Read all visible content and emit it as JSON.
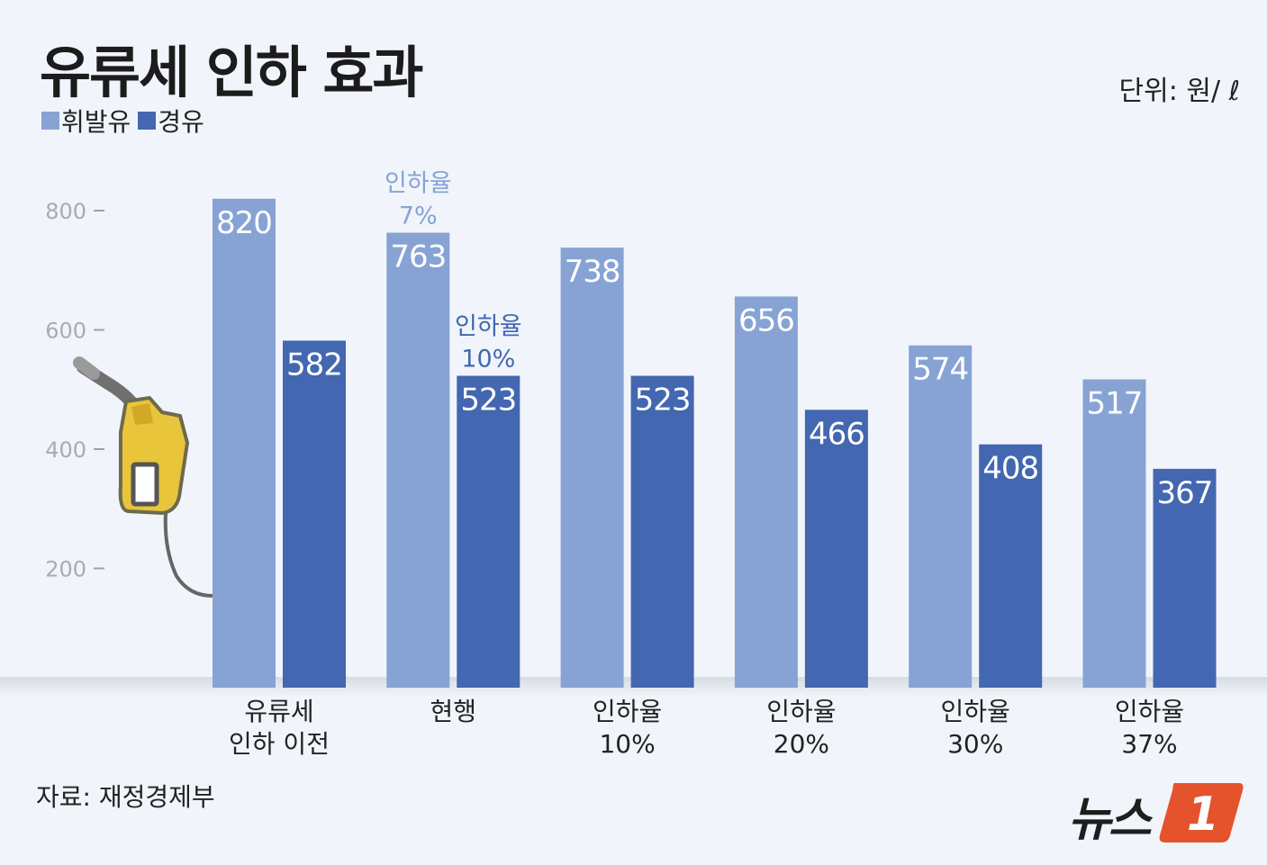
{
  "title": "유류세 인하 효과",
  "unit_label": "단위: 원/ ℓ",
  "source": "자료: 재정경제부",
  "logo_text": "뉴스1",
  "logo_mark": "1",
  "colors": {
    "gasoline": "#87a3d4",
    "diesel": "#4367b0",
    "logo_accent": "#e4532c",
    "nozzle": "#e8c53a"
  },
  "chart_data": {
    "type": "bar",
    "categories": [
      "유류세\n인하 이전",
      "현행",
      "인하율\n10%",
      "인하율\n20%",
      "인하율\n30%",
      "인하율\n37%"
    ],
    "series": [
      {
        "name": "휘발유",
        "values": [
          820,
          763,
          738,
          656,
          574,
          517
        ]
      },
      {
        "name": "경유",
        "values": [
          582,
          523,
          523,
          466,
          408,
          367
        ]
      }
    ],
    "yticks": [
      200,
      400,
      600,
      800
    ],
    "ylim": [
      0,
      860
    ],
    "annotations": [
      {
        "category_index": 1,
        "series_index": 0,
        "text": "인하율\n7%"
      },
      {
        "category_index": 1,
        "series_index": 1,
        "text": "인하율\n10%"
      }
    ],
    "legend_position": "top-left",
    "grid": false
  }
}
